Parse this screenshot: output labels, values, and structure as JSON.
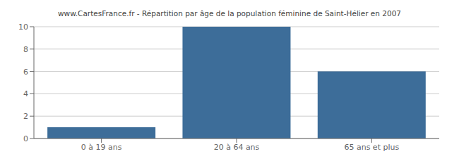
{
  "chart_data": {
    "type": "bar",
    "title": "www.CartesFrance.fr - Répartition par âge de la population féminine de Saint-Hélier en 2007",
    "categories": [
      "0 à 19 ans",
      "20 à 64 ans",
      "65 ans et plus"
    ],
    "values": [
      1,
      10,
      6
    ],
    "color": "#3d6d99",
    "ylim": [
      0,
      10
    ],
    "yticks": [
      0,
      2,
      4,
      6,
      8,
      10
    ],
    "grid": true
  }
}
